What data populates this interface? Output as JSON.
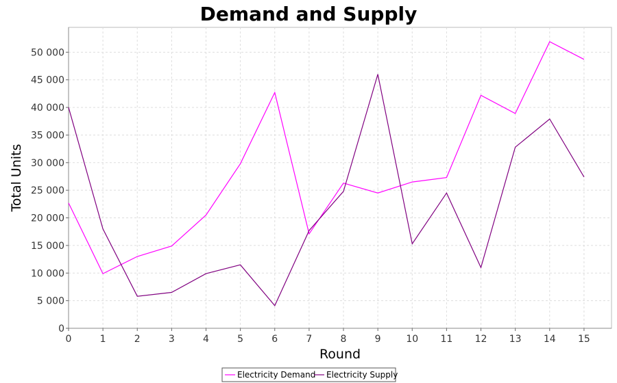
{
  "chart_data": {
    "type": "line",
    "title": "Demand and Supply",
    "xlabel": "Round",
    "ylabel": "Total Units",
    "x": [
      0,
      1,
      2,
      3,
      4,
      5,
      6,
      7,
      8,
      9,
      10,
      11,
      12,
      13,
      14,
      15
    ],
    "xlim": [
      0,
      15.8
    ],
    "ylim": [
      0,
      54500
    ],
    "y_ticks": [
      0,
      5000,
      10000,
      15000,
      20000,
      25000,
      30000,
      35000,
      40000,
      45000,
      50000
    ],
    "y_tick_labels": [
      "0",
      "5 000",
      "10 000",
      "15 000",
      "20 000",
      "25 000",
      "30 000",
      "35 000",
      "40 000",
      "45 000",
      "50 000"
    ],
    "x_tick_labels": [
      "0",
      "1",
      "2",
      "3",
      "4",
      "5",
      "6",
      "7",
      "8",
      "9",
      "10",
      "11",
      "12",
      "13",
      "14",
      "15"
    ],
    "grid": true,
    "legend_position": "bottom-center",
    "series": [
      {
        "name": "Electricity Demand",
        "color": "#ff00ff",
        "values": [
          22700,
          9900,
          13000,
          14900,
          20500,
          29800,
          42700,
          17100,
          26300,
          24500,
          26500,
          27300,
          42200,
          38900,
          51900,
          48700
        ]
      },
      {
        "name": "Electricity Supply",
        "color": "#800080",
        "values": [
          40000,
          18000,
          5800,
          6500,
          9900,
          11500,
          4100,
          17700,
          24800,
          46000,
          15300,
          24500,
          11000,
          32800,
          37900,
          27400
        ]
      }
    ]
  }
}
